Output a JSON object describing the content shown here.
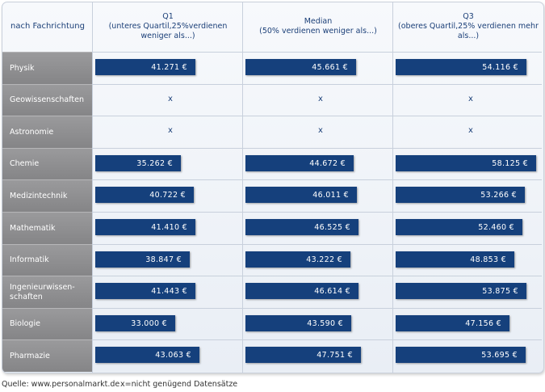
{
  "chart_data": {
    "type": "bar",
    "title": "",
    "row_header": "nach Fachrichtung",
    "series": [
      {
        "name": "Q1",
        "subtitle": "(unteres Quartil,25%verdienen weniger als...)",
        "labels": [
          "41.271 €",
          "x",
          "x",
          "35.262 €",
          "40.722 €",
          "41.410 €",
          "38.847 €",
          "41.443 €",
          "33.000 €",
          "43.063 €"
        ],
        "values": [
          41271,
          null,
          null,
          35262,
          40722,
          41410,
          38847,
          41443,
          33000,
          43063
        ]
      },
      {
        "name": "Median",
        "subtitle": "(50% verdienen weniger als...)",
        "labels": [
          "45.661 €",
          "x",
          "x",
          "44.672 €",
          "46.011 €",
          "46.525 €",
          "43.222 €",
          "46.614 €",
          "43.590 €",
          "47.751 €"
        ],
        "values": [
          45661,
          null,
          null,
          44672,
          46011,
          46525,
          43222,
          46614,
          43590,
          47751
        ]
      },
      {
        "name": "Q3",
        "subtitle": "(oberes Quartil,25% verdienen mehr als...)",
        "labels": [
          "54.116 €",
          "x",
          "x",
          "58.125 €",
          "53.266 €",
          "52.460 €",
          "48.853 €",
          "53.875 €",
          "47.156 €",
          "53.695 €"
        ],
        "values": [
          54116,
          null,
          null,
          58125,
          53266,
          52460,
          48853,
          53875,
          47156,
          53695
        ]
      }
    ],
    "categories": [
      "Physik",
      "Geowissenschaften",
      "Astronomie",
      "Chemie",
      "Medizintechnik",
      "Mathematik",
      "Informatik",
      "Ingenieurwissen-\nschaften",
      "Biologie",
      "Pharmazie"
    ],
    "unit": "€"
  },
  "footer": {
    "source": "Quelle: www.personalmarkt.de",
    "note": "x=nicht genügend Datensätze"
  },
  "colors": {
    "bar": "#15407c",
    "header_text": "#1b3f78",
    "label_bg": "#8f8f91"
  }
}
